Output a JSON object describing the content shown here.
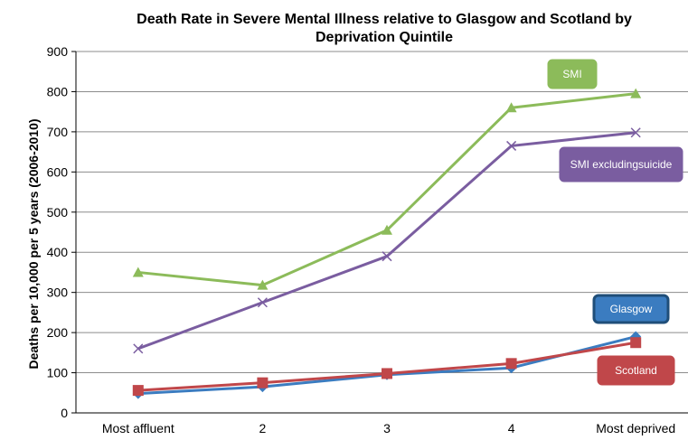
{
  "chart_data": {
    "type": "line",
    "title_line1": "Death Rate in Severe Mental Illness relative to Glasgow and Scotland by",
    "title_line2": "Deprivation Quintile",
    "xlabel": "",
    "ylabel": "Deaths per 10,000 per 5 years (2006-2010)",
    "categories": [
      "Most affluent",
      "2",
      "3",
      "4",
      "Most deprived"
    ],
    "ylim": [
      0,
      900
    ],
    "yticks": [
      0,
      100,
      200,
      300,
      400,
      500,
      600,
      700,
      800,
      900
    ],
    "grid": true,
    "series": [
      {
        "name": "SMI",
        "color": "#8cbb5a",
        "marker": "triangle",
        "values": [
          350,
          318,
          455,
          760,
          795
        ]
      },
      {
        "name": "SMI excluding suicide",
        "color": "#7a5da0",
        "marker": "x",
        "values": [
          160,
          275,
          390,
          665,
          698
        ]
      },
      {
        "name": "Glasgow",
        "color": "#3b7cc0",
        "marker": "diamond",
        "values": [
          48,
          65,
          95,
          112,
          190
        ]
      },
      {
        "name": "Scotland",
        "color": "#c0474a",
        "marker": "square",
        "values": [
          56,
          75,
          98,
          123,
          175
        ]
      }
    ],
    "callouts": [
      {
        "text": "SMI",
        "color": "#8cbb5a",
        "border": "#8cbb5a"
      },
      {
        "text": "SMI excludingsuicide",
        "color": "#7a5da0",
        "border": "#7a5da0"
      },
      {
        "text": "Glasgow",
        "color": "#3b7cc0",
        "border": "#1f4e79"
      },
      {
        "text": "Scotland",
        "color": "#c0474a",
        "border": "#c0474a"
      }
    ]
  }
}
